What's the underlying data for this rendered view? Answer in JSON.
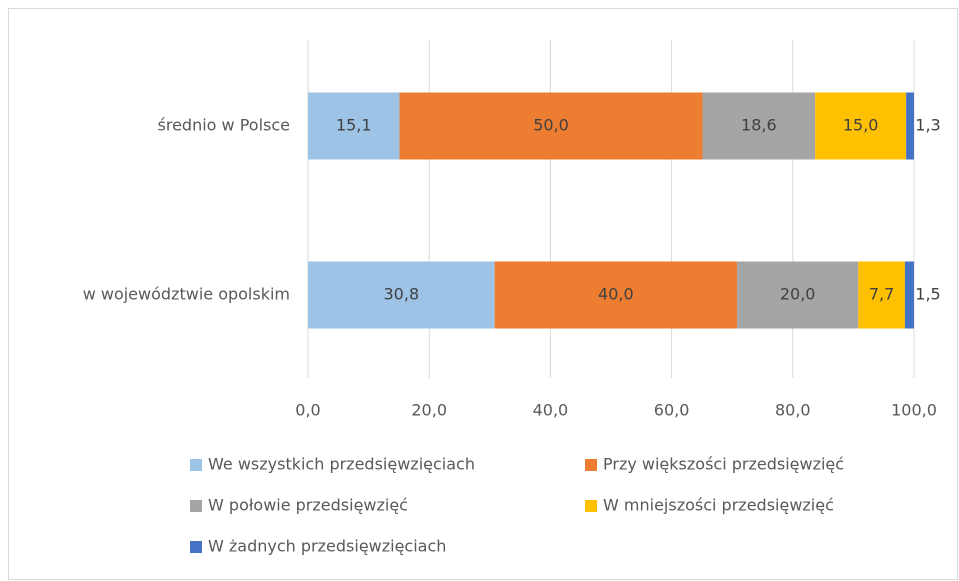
{
  "chart_data": {
    "type": "stacked-barh",
    "categories": [
      "średnio w Polsce",
      "w województwie opolskim"
    ],
    "series": [
      {
        "name": "We wszystkich przedsięwzięciach",
        "color": "#9dc3e6",
        "values": [
          15.1,
          30.8
        ],
        "value_labels": [
          "15,1",
          "30,8"
        ]
      },
      {
        "name": "Przy większości przedsięwzięć",
        "color": "#ed7d31",
        "values": [
          50.0,
          40.0
        ],
        "value_labels": [
          "50,0",
          "40,0"
        ]
      },
      {
        "name": "W połowie przedsięwzięć",
        "color": "#a5a5a5",
        "values": [
          18.6,
          20.0
        ],
        "value_labels": [
          "18,6",
          "20,0"
        ]
      },
      {
        "name": "W mniejszości przedsięwzięć",
        "color": "#ffc000",
        "values": [
          15.0,
          7.7
        ],
        "value_labels": [
          "15,0",
          "7,7"
        ]
      },
      {
        "name": "W żadnych przedsięwzięciach",
        "color": "#4472c4",
        "values": [
          1.3,
          1.5
        ],
        "value_labels": [
          "1,3",
          "1,5"
        ]
      }
    ],
    "xlim": [
      0,
      100
    ],
    "xticks": [
      {
        "value": 0,
        "label": "0,0"
      },
      {
        "value": 20,
        "label": "20,0"
      },
      {
        "value": 40,
        "label": "40,0"
      },
      {
        "value": 60,
        "label": "60,0"
      },
      {
        "value": 80,
        "label": "80,0"
      },
      {
        "value": 100,
        "label": "100,0"
      }
    ],
    "grid": true,
    "legend": "bottom"
  }
}
